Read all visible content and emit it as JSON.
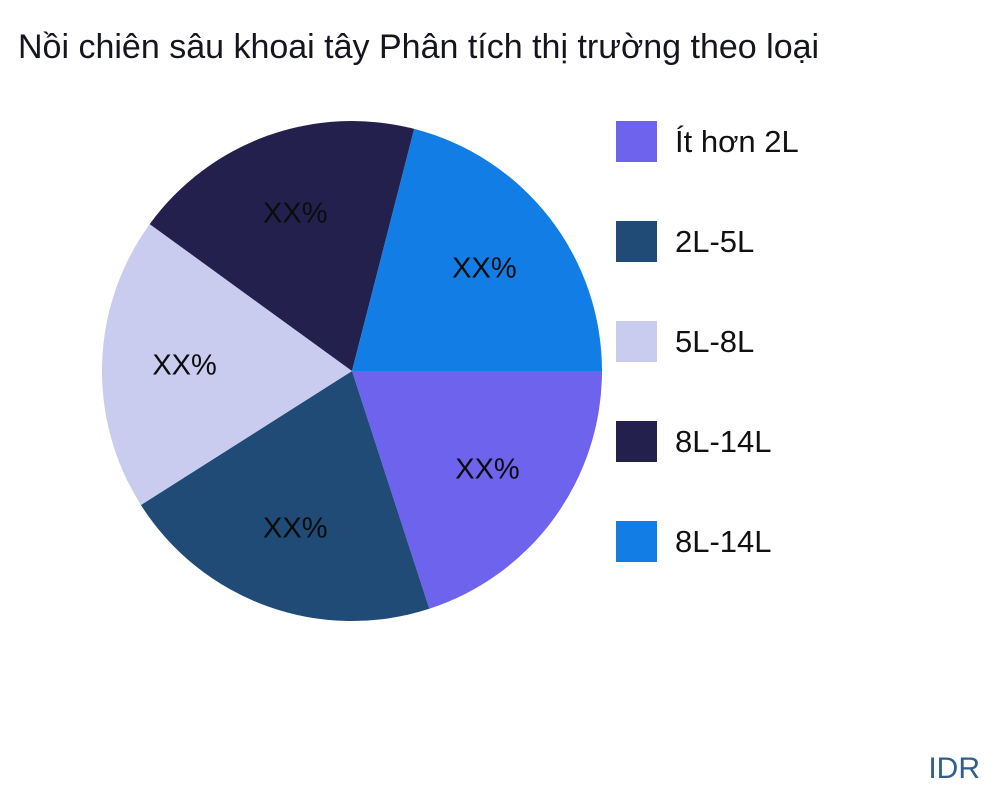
{
  "title": "Nồi chiên sâu khoai tây Phân tích thị trường theo loại",
  "watermark": "IDR",
  "chart_data": {
    "type": "pie",
    "title": "Nồi chiên sâu khoai tây Phân tích thị trường theo loại",
    "legend_position": "right",
    "direction": "clockwise",
    "start_angle_deg": 0,
    "value_label_placeholder": "XX%",
    "slices": [
      {
        "label": "Ít hơn 2L",
        "value": 20,
        "value_label": "XX%",
        "color": "#6e63ed"
      },
      {
        "label": "2L-5L",
        "value": 21,
        "value_label": "XX%",
        "color": "#1f4b76"
      },
      {
        "label": "5L-8L",
        "value": 19,
        "value_label": "XX%",
        "color": "#c9ccef"
      },
      {
        "label": "8L-14L",
        "value": 19,
        "value_label": "XX%",
        "color": "#23204e"
      },
      {
        "label": "8L-14L",
        "value": 21,
        "value_label": "XX%",
        "color": "#127de5"
      }
    ]
  }
}
